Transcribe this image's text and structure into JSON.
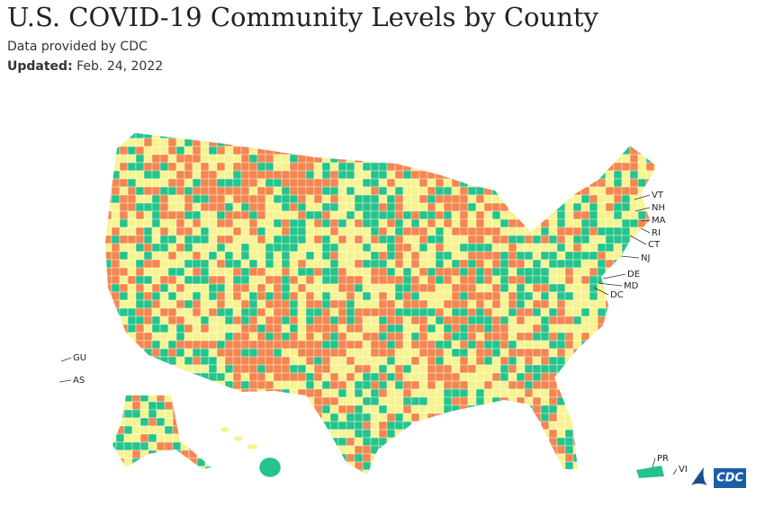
{
  "header": {
    "title": "U.S. COVID-19 Community Levels by County",
    "source": "Data provided by CDC",
    "updated_label": "Updated:",
    "updated_date": "Feb. 24, 2022"
  },
  "map": {
    "labels": [
      "VT",
      "NH",
      "MA",
      "RI",
      "CT",
      "NJ",
      "DE",
      "MD",
      "DC",
      "GU",
      "AS",
      "PR",
      "VI"
    ]
  },
  "logo": "CDC"
}
